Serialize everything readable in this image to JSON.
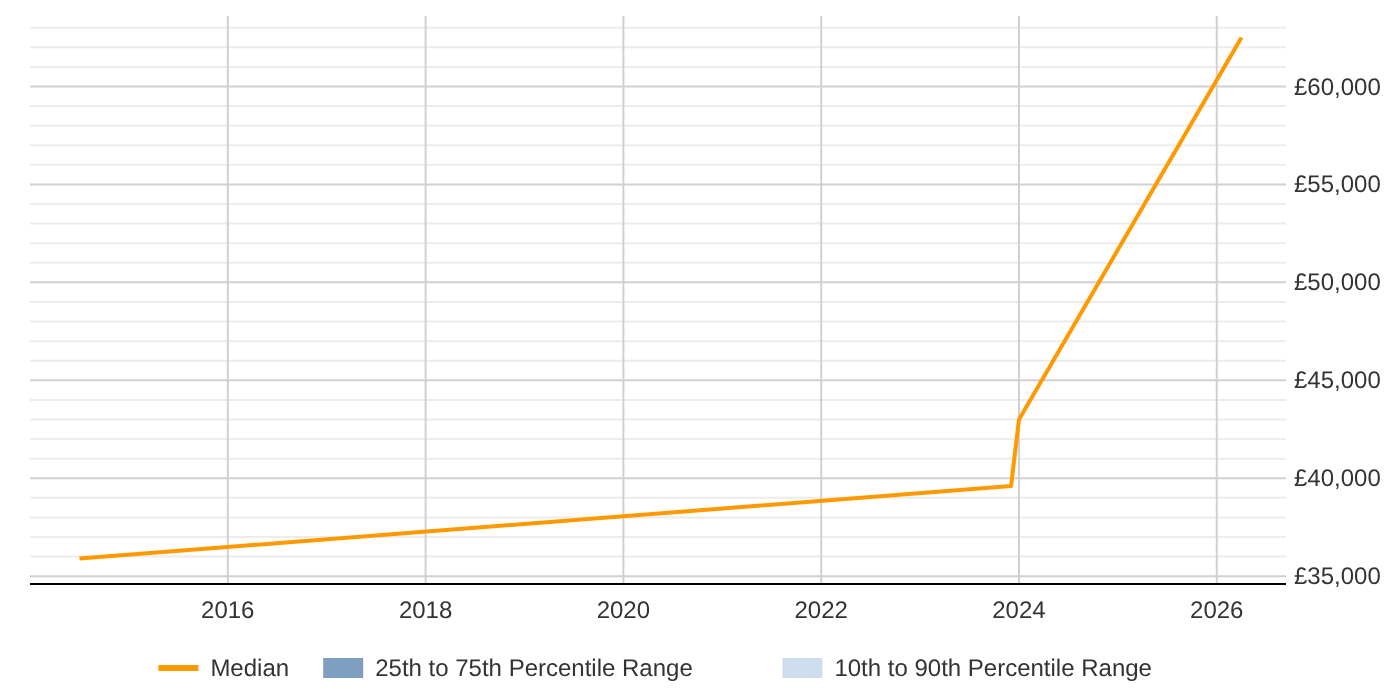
{
  "chart_data": {
    "type": "line",
    "x": [
      2014.5,
      2023.92,
      2024.0,
      2026.25
    ],
    "series": [
      {
        "name": "Median",
        "color": "#ff9900",
        "values": [
          35900,
          39600,
          43000,
          62500
        ]
      },
      {
        "name": "25th to 75th Percentile Range",
        "type": "area",
        "color": "#7f9fc1",
        "values": [
          null,
          null,
          null,
          null
        ]
      },
      {
        "name": "10th to 90th Percentile Range",
        "type": "area",
        "color": "#cfdeee",
        "values": [
          null,
          null,
          null,
          null
        ]
      }
    ],
    "xlim": [
      2014.0,
      2026.7
    ],
    "xticks": [
      2016,
      2018,
      2020,
      2022,
      2024,
      2026
    ],
    "ylim": [
      34600,
      63600
    ],
    "yticks": [
      {
        "value": 35000,
        "label": "£35,000"
      },
      {
        "value": 36000,
        "label": null
      },
      {
        "value": 37000,
        "label": null
      },
      {
        "value": 38000,
        "label": null
      },
      {
        "value": 39000,
        "label": null
      },
      {
        "value": 40000,
        "label": "£40,000"
      },
      {
        "value": 41000,
        "label": null
      },
      {
        "value": 42000,
        "label": null
      },
      {
        "value": 43000,
        "label": null
      },
      {
        "value": 44000,
        "label": null
      },
      {
        "value": 45000,
        "label": "£45,000"
      },
      {
        "value": 46000,
        "label": null
      },
      {
        "value": 47000,
        "label": null
      },
      {
        "value": 48000,
        "label": null
      },
      {
        "value": 49000,
        "label": null
      },
      {
        "value": 50000,
        "label": "£50,000"
      },
      {
        "value": 51000,
        "label": null
      },
      {
        "value": 52000,
        "label": null
      },
      {
        "value": 53000,
        "label": null
      },
      {
        "value": 54000,
        "label": null
      },
      {
        "value": 55000,
        "label": "£55,000"
      },
      {
        "value": 56000,
        "label": null
      },
      {
        "value": 57000,
        "label": null
      },
      {
        "value": 58000,
        "label": null
      },
      {
        "value": 59000,
        "label": null
      },
      {
        "value": 60000,
        "label": "£60,000"
      },
      {
        "value": 61000,
        "label": null
      },
      {
        "value": 62000,
        "label": null
      },
      {
        "value": 63000,
        "label": null
      }
    ],
    "grid": true,
    "legend": "bottom",
    "marker": "none",
    "line_style": "solid"
  }
}
